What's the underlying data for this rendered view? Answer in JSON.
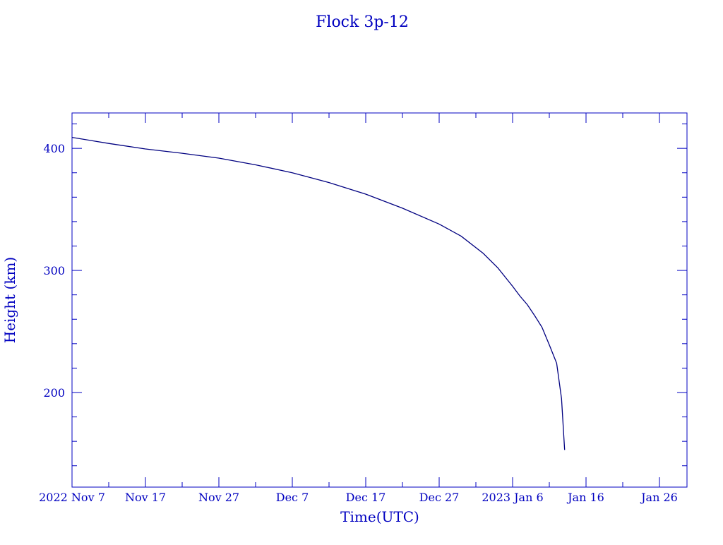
{
  "chart_data": {
    "type": "line",
    "title": "Flock 3p-12",
    "xlabel": "Time(UTC)",
    "ylabel": "Height (km)",
    "color": "#000080",
    "axis_color": "#0000c0",
    "xlim": [
      "2022-11-07T00:00",
      "2023-01-29T18:00"
    ],
    "ylim": [
      122.5,
      429
    ],
    "x_ticks": [
      {
        "date": "2022-11-07",
        "label": "2022 Nov  7"
      },
      {
        "date": "2022-11-17",
        "label": "Nov 17"
      },
      {
        "date": "2022-11-27",
        "label": "Nov 27"
      },
      {
        "date": "2022-12-07",
        "label": "Dec  7"
      },
      {
        "date": "2022-12-17",
        "label": "Dec 17"
      },
      {
        "date": "2022-12-27",
        "label": "Dec 27"
      },
      {
        "date": "2023-01-06",
        "label": "2023 Jan  6"
      },
      {
        "date": "2023-01-16",
        "label": "Jan 16"
      },
      {
        "date": "2023-01-26",
        "label": "Jan 26"
      }
    ],
    "y_ticks": [
      {
        "value": 200,
        "label": "200"
      },
      {
        "value": 300,
        "label": "300"
      },
      {
        "value": 400,
        "label": "400"
      }
    ],
    "grid": false,
    "series": [
      {
        "x": [
          "2022-11-07",
          "2022-11-12",
          "2022-11-17",
          "2022-11-22",
          "2022-11-27",
          "2022-12-02",
          "2022-12-07",
          "2022-12-12",
          "2022-12-17",
          "2022-12-22",
          "2022-12-27",
          "2022-12-30",
          "2023-01-02",
          "2023-01-04",
          "2023-01-06",
          "2023-01-07",
          "2023-01-08",
          "2023-01-09",
          "2023-01-10",
          "2023-01-11",
          "2023-01-12",
          "2023-01-12T16:00",
          "2023-01-13T02:00"
        ],
        "y": [
          409,
          404,
          399.5,
          396,
          392,
          386.5,
          380,
          372,
          362.5,
          351,
          338,
          328,
          314,
          302,
          287,
          279,
          272,
          263,
          253.5,
          239,
          224,
          195,
          153
        ]
      }
    ]
  }
}
